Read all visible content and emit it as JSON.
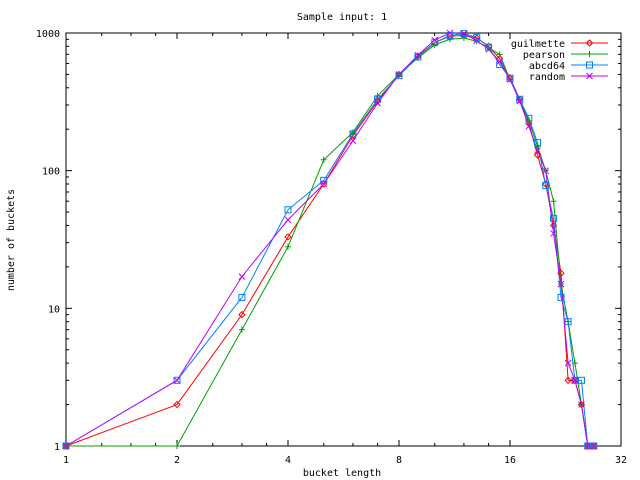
{
  "chart_data": {
    "type": "line",
    "title": "Sample input: 1",
    "xlabel": "bucket length",
    "ylabel": "number of buckets",
    "xscale": "log2",
    "yscale": "log10",
    "xlim": [
      1,
      32
    ],
    "ylim": [
      1,
      1000
    ],
    "x_ticks": [
      {
        "value": 1,
        "label": "1"
      },
      {
        "value": 2,
        "label": "2"
      },
      {
        "value": 4,
        "label": "4"
      },
      {
        "value": 8,
        "label": "8"
      },
      {
        "value": 16,
        "label": "16"
      },
      {
        "value": 32,
        "label": "32"
      }
    ],
    "y_ticks": [
      {
        "value": 1,
        "label": "1"
      },
      {
        "value": 10,
        "label": "10"
      },
      {
        "value": 100,
        "label": "100"
      },
      {
        "value": 1000,
        "label": "1000"
      }
    ],
    "grid": false,
    "legend_position": "top-right",
    "series": [
      {
        "name": "guilmette",
        "color": "#ff0000",
        "marker": "diamond",
        "x": [
          1,
          2,
          3,
          4,
          5,
          6,
          7,
          8,
          9,
          10,
          11,
          12,
          13,
          14,
          15,
          16,
          17,
          18,
          19,
          20,
          21,
          22,
          23,
          24,
          25,
          26,
          27
        ],
        "y": [
          1,
          2,
          9,
          33,
          80,
          180,
          320,
          500,
          680,
          850,
          950,
          960,
          920,
          800,
          650,
          470,
          330,
          220,
          130,
          80,
          40,
          18,
          3,
          3,
          2,
          1,
          1
        ]
      },
      {
        "name": "pearson",
        "color": "#00a000",
        "marker": "plus",
        "x": [
          1,
          2,
          3,
          4,
          5,
          6,
          7,
          8,
          9,
          10,
          11,
          12,
          13,
          14,
          15,
          16,
          17,
          18,
          19,
          20,
          21,
          22,
          23,
          24,
          25,
          26,
          27
        ],
        "y": [
          1,
          1,
          7,
          28,
          120,
          190,
          350,
          500,
          660,
          820,
          900,
          920,
          870,
          780,
          700,
          460,
          330,
          230,
          150,
          100,
          60,
          15,
          8,
          4,
          2,
          1,
          1
        ]
      },
      {
        "name": "abcd64",
        "color": "#0080ff",
        "marker": "square",
        "x": [
          1,
          2,
          3,
          4,
          5,
          6,
          7,
          8,
          9,
          10,
          11,
          12,
          13,
          14,
          15,
          16,
          17,
          18,
          19,
          20,
          21,
          22,
          23,
          24,
          25,
          26,
          27
        ],
        "y": [
          1,
          3,
          12,
          52,
          85,
          185,
          330,
          490,
          670,
          850,
          960,
          990,
          930,
          790,
          590,
          470,
          330,
          240,
          160,
          78,
          45,
          12,
          8,
          3,
          3,
          1,
          1
        ]
      },
      {
        "name": "random",
        "color": "#c000ff",
        "marker": "cross",
        "x": [
          1,
          2,
          3,
          4,
          5,
          6,
          7,
          8,
          9,
          10,
          11,
          12,
          13,
          14,
          15,
          16,
          17,
          18,
          19,
          20,
          21,
          22,
          23,
          24,
          25,
          26,
          27
        ],
        "y": [
          1,
          3,
          17,
          44,
          80,
          165,
          310,
          500,
          690,
          890,
          1000,
          990,
          880,
          760,
          620,
          460,
          320,
          210,
          140,
          100,
          35,
          15,
          4,
          3,
          2,
          1,
          1
        ]
      }
    ]
  }
}
